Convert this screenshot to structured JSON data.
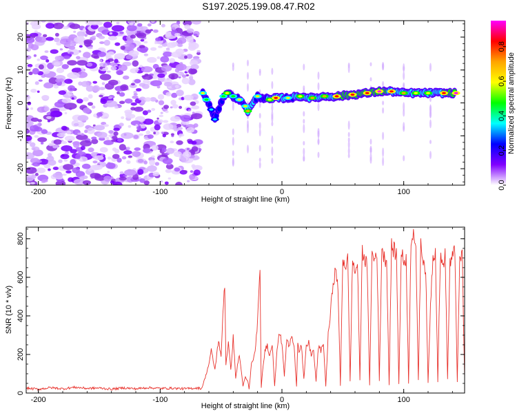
{
  "title": "S197.2025.199.08.47.R02",
  "chart_data": [
    {
      "type": "heatmap",
      "xlabel": "Height of straight line (km)",
      "ylabel": "Frequency (Hz)",
      "xlim": [
        -210,
        150
      ],
      "ylim": [
        -25,
        25
      ],
      "xticks": [
        -200,
        -100,
        0,
        100
      ],
      "yticks": [
        20,
        10,
        0,
        -10,
        -20
      ],
      "colorbar": {
        "label": "Normalized spectral amplitude",
        "lim": [
          0,
          0.95
        ],
        "ticks": [
          "0.0",
          "0.2",
          "0.4",
          "0.6",
          "0.8"
        ],
        "colormap": [
          "#ff00ff",
          "#ff0000",
          "#ffa500",
          "#ffff00",
          "#00ff00",
          "#00ffff",
          "#0000ff",
          "#8000ff",
          "#ffffff"
        ]
      },
      "noise_region": {
        "x_from": -210,
        "x_to": -68,
        "level": 0.1
      },
      "ridge": [
        {
          "x": -65,
          "f": 3,
          "a": 0.55
        },
        {
          "x": -62,
          "f": 1,
          "a": 0.45
        },
        {
          "x": -58,
          "f": -2,
          "a": 0.4
        },
        {
          "x": -55,
          "f": -5,
          "a": 0.4
        },
        {
          "x": -48,
          "f": 2,
          "a": 0.45
        },
        {
          "x": -45,
          "f": 3,
          "a": 0.6
        },
        {
          "x": -40,
          "f": 2,
          "a": 0.5
        },
        {
          "x": -35,
          "f": 1,
          "a": 0.55
        },
        {
          "x": -30,
          "f": -1,
          "a": 0.55
        },
        {
          "x": -28,
          "f": -2.5,
          "a": 0.75
        },
        {
          "x": -20,
          "f": 2,
          "a": 0.55
        },
        {
          "x": -10,
          "f": 1,
          "a": 0.6
        },
        {
          "x": -5,
          "f": 1.5,
          "a": 0.8
        },
        {
          "x": 5,
          "f": 1.5,
          "a": 0.55
        },
        {
          "x": 15,
          "f": 2,
          "a": 0.65
        },
        {
          "x": 25,
          "f": 1.5,
          "a": 0.7
        },
        {
          "x": 35,
          "f": 2,
          "a": 0.75
        },
        {
          "x": 45,
          "f": 2,
          "a": 0.85
        },
        {
          "x": 58,
          "f": 2.5,
          "a": 0.85
        },
        {
          "x": 70,
          "f": 3,
          "a": 0.85
        },
        {
          "x": 80,
          "f": 3.5,
          "a": 0.9
        },
        {
          "x": 90,
          "f": 3.5,
          "a": 0.8
        },
        {
          "x": 100,
          "f": 3,
          "a": 0.7
        },
        {
          "x": 110,
          "f": 3,
          "a": 0.65
        },
        {
          "x": 120,
          "f": 3,
          "a": 0.6
        },
        {
          "x": 133,
          "f": 3,
          "a": 0.85
        },
        {
          "x": 143,
          "f": 3,
          "a": 0.9
        }
      ]
    },
    {
      "type": "line",
      "xlabel": "Height of straight line (km)",
      "ylabel": "SNR (10 * v/v)",
      "xlim": [
        -210,
        150
      ],
      "ylim": [
        0,
        860
      ],
      "xticks": [
        -200,
        -100,
        0,
        100
      ],
      "yticks": [
        0,
        200,
        400,
        600,
        800
      ],
      "color": "#e8312b",
      "series": [
        {
          "x": [
            -210,
            -200,
            -190,
            -180,
            -170,
            -160,
            -150,
            -140,
            -130,
            -120,
            -110,
            -100,
            -90,
            -80,
            -70,
            -66,
            -63,
            -60,
            -58,
            -55,
            -52,
            -50,
            -48,
            -47,
            -46,
            -44,
            -42,
            -40,
            -38,
            -35,
            -32,
            -30,
            -28,
            -27,
            -25,
            -22,
            -20,
            -18,
            -17,
            -16,
            -14,
            -12,
            -10,
            -8,
            -6,
            -4,
            -2,
            0,
            2,
            4,
            6,
            8,
            10,
            12,
            13,
            14,
            16,
            18,
            20,
            22,
            24,
            26,
            28,
            30,
            32,
            34,
            36,
            38,
            40,
            42,
            44,
            46,
            48,
            50,
            52,
            54,
            56,
            58,
            60,
            62,
            64,
            66,
            68,
            70,
            72,
            74,
            76,
            78,
            80,
            82,
            84,
            86,
            88,
            90,
            92,
            94,
            96,
            98,
            100,
            102,
            104,
            106,
            108,
            110,
            112,
            114,
            116,
            118,
            120,
            122,
            124,
            126,
            128,
            130,
            132,
            134,
            136,
            138,
            140,
            142,
            144,
            146,
            148,
            150
          ],
          "y": [
            25,
            20,
            28,
            22,
            30,
            24,
            26,
            20,
            27,
            22,
            28,
            24,
            25,
            22,
            26,
            24,
            80,
            150,
            220,
            120,
            280,
            180,
            480,
            570,
            150,
            260,
            120,
            290,
            80,
            200,
            40,
            80,
            60,
            20,
            150,
            210,
            380,
            615,
            30,
            100,
            220,
            250,
            190,
            260,
            40,
            230,
            310,
            260,
            90,
            280,
            240,
            300,
            230,
            40,
            270,
            220,
            250,
            70,
            240,
            260,
            200,
            220,
            60,
            240,
            220,
            260,
            40,
            300,
            420,
            580,
            630,
            560,
            40,
            700,
            660,
            690,
            60,
            700,
            620,
            680,
            70,
            740,
            700,
            650,
            45,
            720,
            690,
            740,
            60,
            760,
            700,
            690,
            40,
            760,
            740,
            720,
            50,
            730,
            680,
            700,
            45,
            800,
            850,
            720,
            70,
            760,
            700,
            640,
            50,
            460,
            710,
            740,
            60,
            700,
            660,
            720,
            70,
            680,
            700,
            740,
            60,
            690,
            720,
            80
          ]
        }
      ]
    }
  ]
}
